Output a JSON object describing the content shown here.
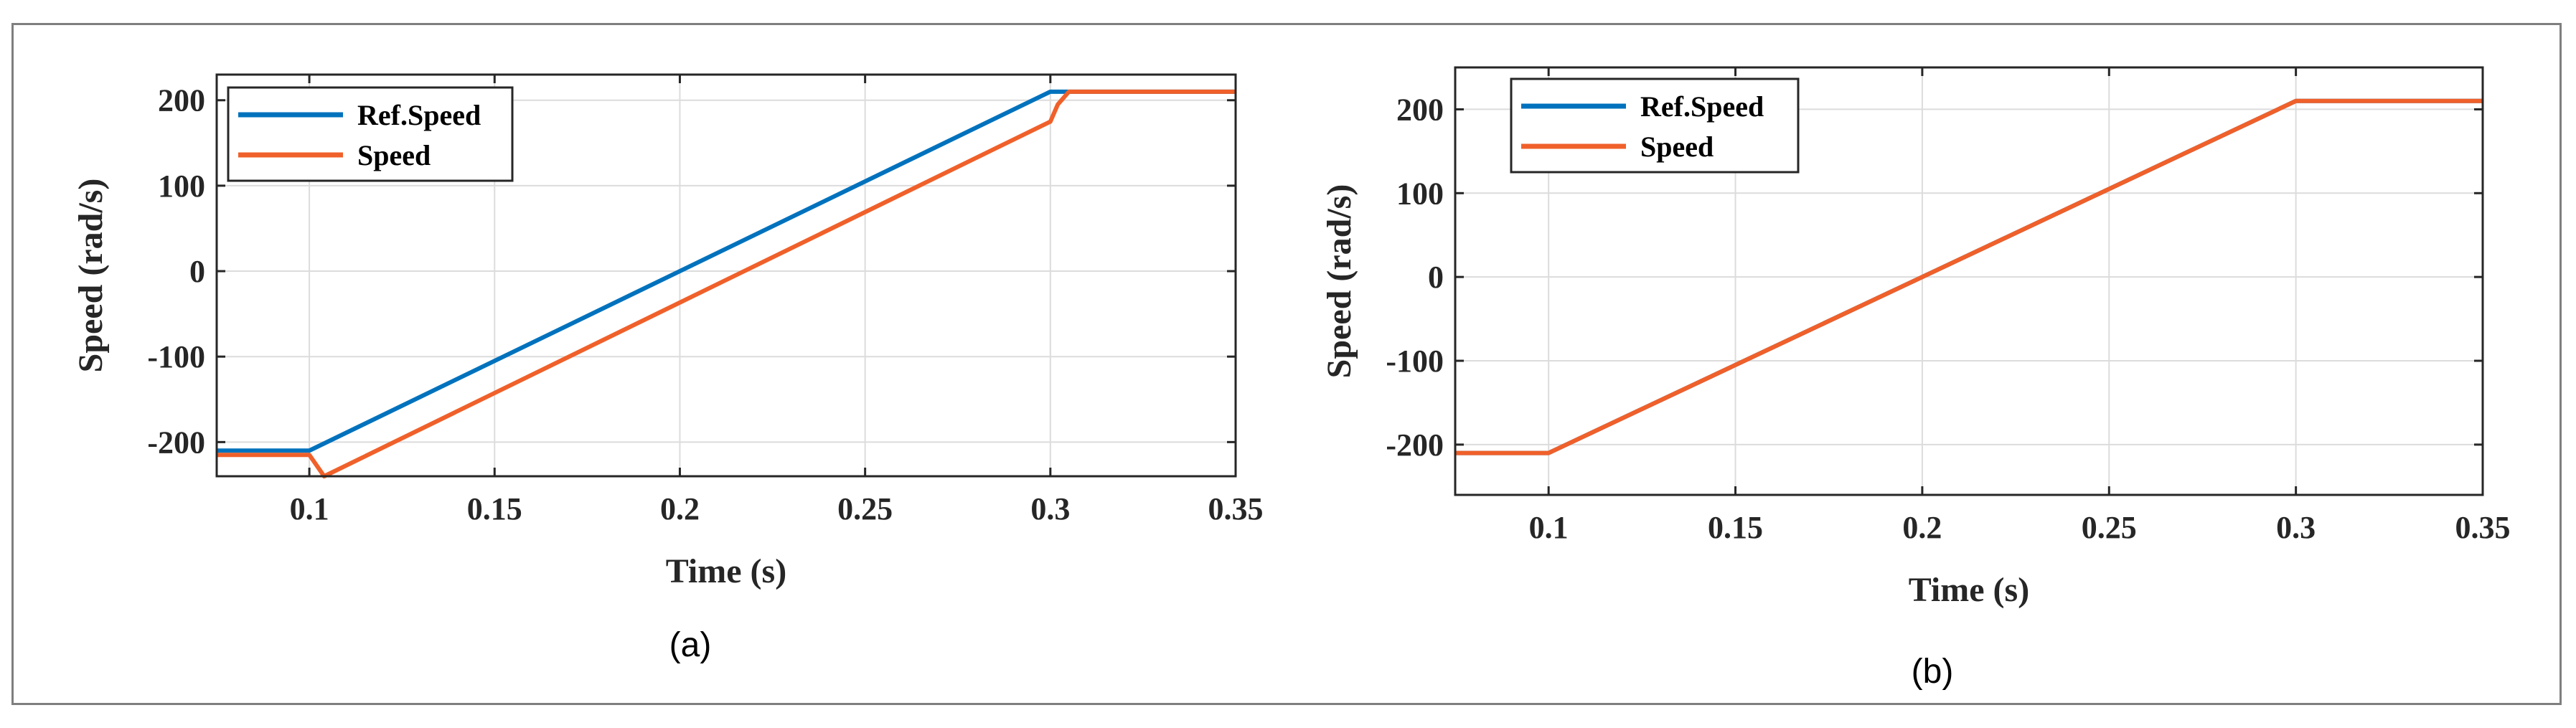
{
  "colors": {
    "ref": "#0072bd",
    "speed": "#f0602a",
    "grid": "#dcdcdc",
    "axes": "#262626"
  },
  "chart_data": [
    {
      "type": "line",
      "panel_label": "(a)",
      "xlabel": "Time (s)",
      "ylabel": "Speed (rad/s)",
      "xlim": [
        0.075,
        0.35
      ],
      "ylim": [
        -240,
        230
      ],
      "xticks": [
        0.1,
        0.15,
        0.2,
        0.25,
        0.3,
        0.35
      ],
      "xtick_labels": [
        "0.1",
        "0.15",
        "0.2",
        "0.25",
        "0.3",
        "0.35"
      ],
      "yticks": [
        -200,
        -100,
        0,
        100,
        200
      ],
      "ytick_labels": [
        "-200",
        "-100",
        "0",
        "100",
        "200"
      ],
      "grid": true,
      "legend_position": "top-left",
      "series": [
        {
          "name": "Ref.Speed",
          "color": "#0072bd",
          "x": [
            0.075,
            0.1,
            0.3,
            0.35
          ],
          "y": [
            -210,
            -210,
            210,
            210
          ]
        },
        {
          "name": "Speed",
          "color": "#f0602a",
          "x": [
            0.075,
            0.1,
            0.104,
            0.3,
            0.302,
            0.305,
            0.35
          ],
          "y": [
            -215,
            -215,
            -240,
            175,
            195,
            210,
            210
          ]
        }
      ]
    },
    {
      "type": "line",
      "panel_label": "(b)",
      "xlabel": "Time (s)",
      "ylabel": "Speed (rad/s)",
      "xlim": [
        0.075,
        0.35
      ],
      "ylim": [
        -260,
        250
      ],
      "xticks": [
        0.1,
        0.15,
        0.2,
        0.25,
        0.3,
        0.35
      ],
      "xtick_labels": [
        "0.1",
        "0.15",
        "0.2",
        "0.25",
        "0.3",
        "0.35"
      ],
      "yticks": [
        -200,
        -100,
        0,
        100,
        200
      ],
      "ytick_labels": [
        "-200",
        "-100",
        "0",
        "100",
        "200"
      ],
      "grid": true,
      "legend_position": "top-left",
      "series": [
        {
          "name": "Ref.Speed",
          "color": "#0072bd",
          "x": [
            0.075,
            0.1,
            0.3,
            0.35
          ],
          "y": [
            -210,
            -210,
            210,
            210
          ]
        },
        {
          "name": "Speed",
          "color": "#f0602a",
          "x": [
            0.075,
            0.1,
            0.3,
            0.35
          ],
          "y": [
            -210,
            -210,
            210,
            210
          ]
        }
      ]
    }
  ]
}
